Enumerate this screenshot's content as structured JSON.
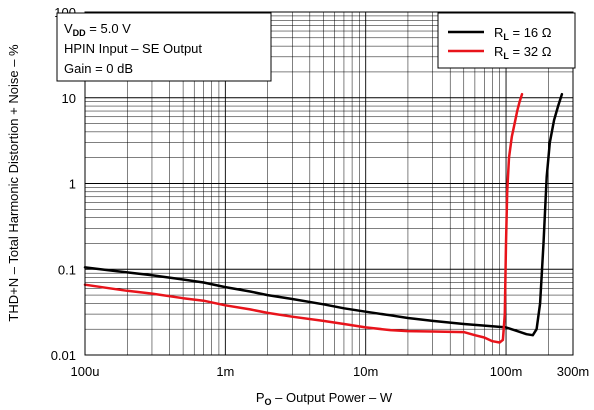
{
  "chart_data": {
    "type": "line",
    "xscale": "log",
    "yscale": "log",
    "xlim": [
      0.0001,
      0.3
    ],
    "ylim": [
      0.01,
      100
    ],
    "grid": true,
    "xlabel": {
      "pre": "P",
      "sub": "O",
      "post": " – Output Power – W"
    },
    "ylabel": "THD+N – Total Harmonic Distortion + Noise – %",
    "x_ticks": [
      {
        "v": 0.0001,
        "label": "100u"
      },
      {
        "v": 0.001,
        "label": "1m"
      },
      {
        "v": 0.01,
        "label": "10m"
      },
      {
        "v": 0.1,
        "label": "100m"
      },
      {
        "v": 0.3,
        "label": "300m"
      }
    ],
    "y_ticks": [
      {
        "v": 0.01,
        "label": "0.01"
      },
      {
        "v": 0.1,
        "label": "0.1"
      },
      {
        "v": 1,
        "label": "1"
      },
      {
        "v": 10,
        "label": "10"
      },
      {
        "v": 100,
        "label": "100"
      }
    ],
    "conditions": [
      {
        "pre": "V",
        "sub": "DD",
        "post": " = 5.0 V"
      },
      {
        "pre": "HPIN Input – SE Output",
        "sub": "",
        "post": ""
      },
      {
        "pre": "Gain = 0 dB",
        "sub": "",
        "post": ""
      }
    ],
    "legend_position": "top-right",
    "series": [
      {
        "name": {
          "pre": "R",
          "sub": "L",
          "post": " = 16 Ω"
        },
        "color": "#000000",
        "points": [
          [
            0.0001,
            0.105
          ],
          [
            0.00015,
            0.097
          ],
          [
            0.0002,
            0.092
          ],
          [
            0.0003,
            0.085
          ],
          [
            0.0005,
            0.076
          ],
          [
            0.0007,
            0.07
          ],
          [
            0.001,
            0.062
          ],
          [
            0.0015,
            0.055
          ],
          [
            0.002,
            0.05
          ],
          [
            0.003,
            0.045
          ],
          [
            0.005,
            0.039
          ],
          [
            0.007,
            0.035
          ],
          [
            0.01,
            0.032
          ],
          [
            0.015,
            0.029
          ],
          [
            0.02,
            0.027
          ],
          [
            0.03,
            0.025
          ],
          [
            0.05,
            0.023
          ],
          [
            0.07,
            0.022
          ],
          [
            0.1,
            0.021
          ],
          [
            0.12,
            0.019
          ],
          [
            0.14,
            0.0175
          ],
          [
            0.155,
            0.017
          ],
          [
            0.165,
            0.02
          ],
          [
            0.175,
            0.04
          ],
          [
            0.185,
            0.2
          ],
          [
            0.195,
            1.2
          ],
          [
            0.205,
            3.0
          ],
          [
            0.22,
            5.5
          ],
          [
            0.235,
            8.0
          ],
          [
            0.25,
            11.0
          ]
        ]
      },
      {
        "name": {
          "pre": "R",
          "sub": "L",
          "post": " = 32 Ω"
        },
        "color": "#e8141b",
        "points": [
          [
            0.0001,
            0.066
          ],
          [
            0.00015,
            0.06
          ],
          [
            0.0002,
            0.056
          ],
          [
            0.0003,
            0.052
          ],
          [
            0.0005,
            0.046
          ],
          [
            0.0007,
            0.043
          ],
          [
            0.001,
            0.038
          ],
          [
            0.0015,
            0.034
          ],
          [
            0.002,
            0.031
          ],
          [
            0.003,
            0.028
          ],
          [
            0.005,
            0.025
          ],
          [
            0.007,
            0.023
          ],
          [
            0.01,
            0.021
          ],
          [
            0.015,
            0.0195
          ],
          [
            0.02,
            0.019
          ],
          [
            0.03,
            0.0188
          ],
          [
            0.05,
            0.0185
          ],
          [
            0.06,
            0.017
          ],
          [
            0.07,
            0.016
          ],
          [
            0.08,
            0.0145
          ],
          [
            0.09,
            0.014
          ],
          [
            0.095,
            0.015
          ],
          [
            0.098,
            0.03
          ],
          [
            0.1,
            0.2
          ],
          [
            0.102,
            0.8
          ],
          [
            0.105,
            2.0
          ],
          [
            0.11,
            3.5
          ],
          [
            0.115,
            5.0
          ],
          [
            0.12,
            7.0
          ],
          [
            0.125,
            9.0
          ],
          [
            0.13,
            11.0
          ]
        ]
      }
    ]
  }
}
